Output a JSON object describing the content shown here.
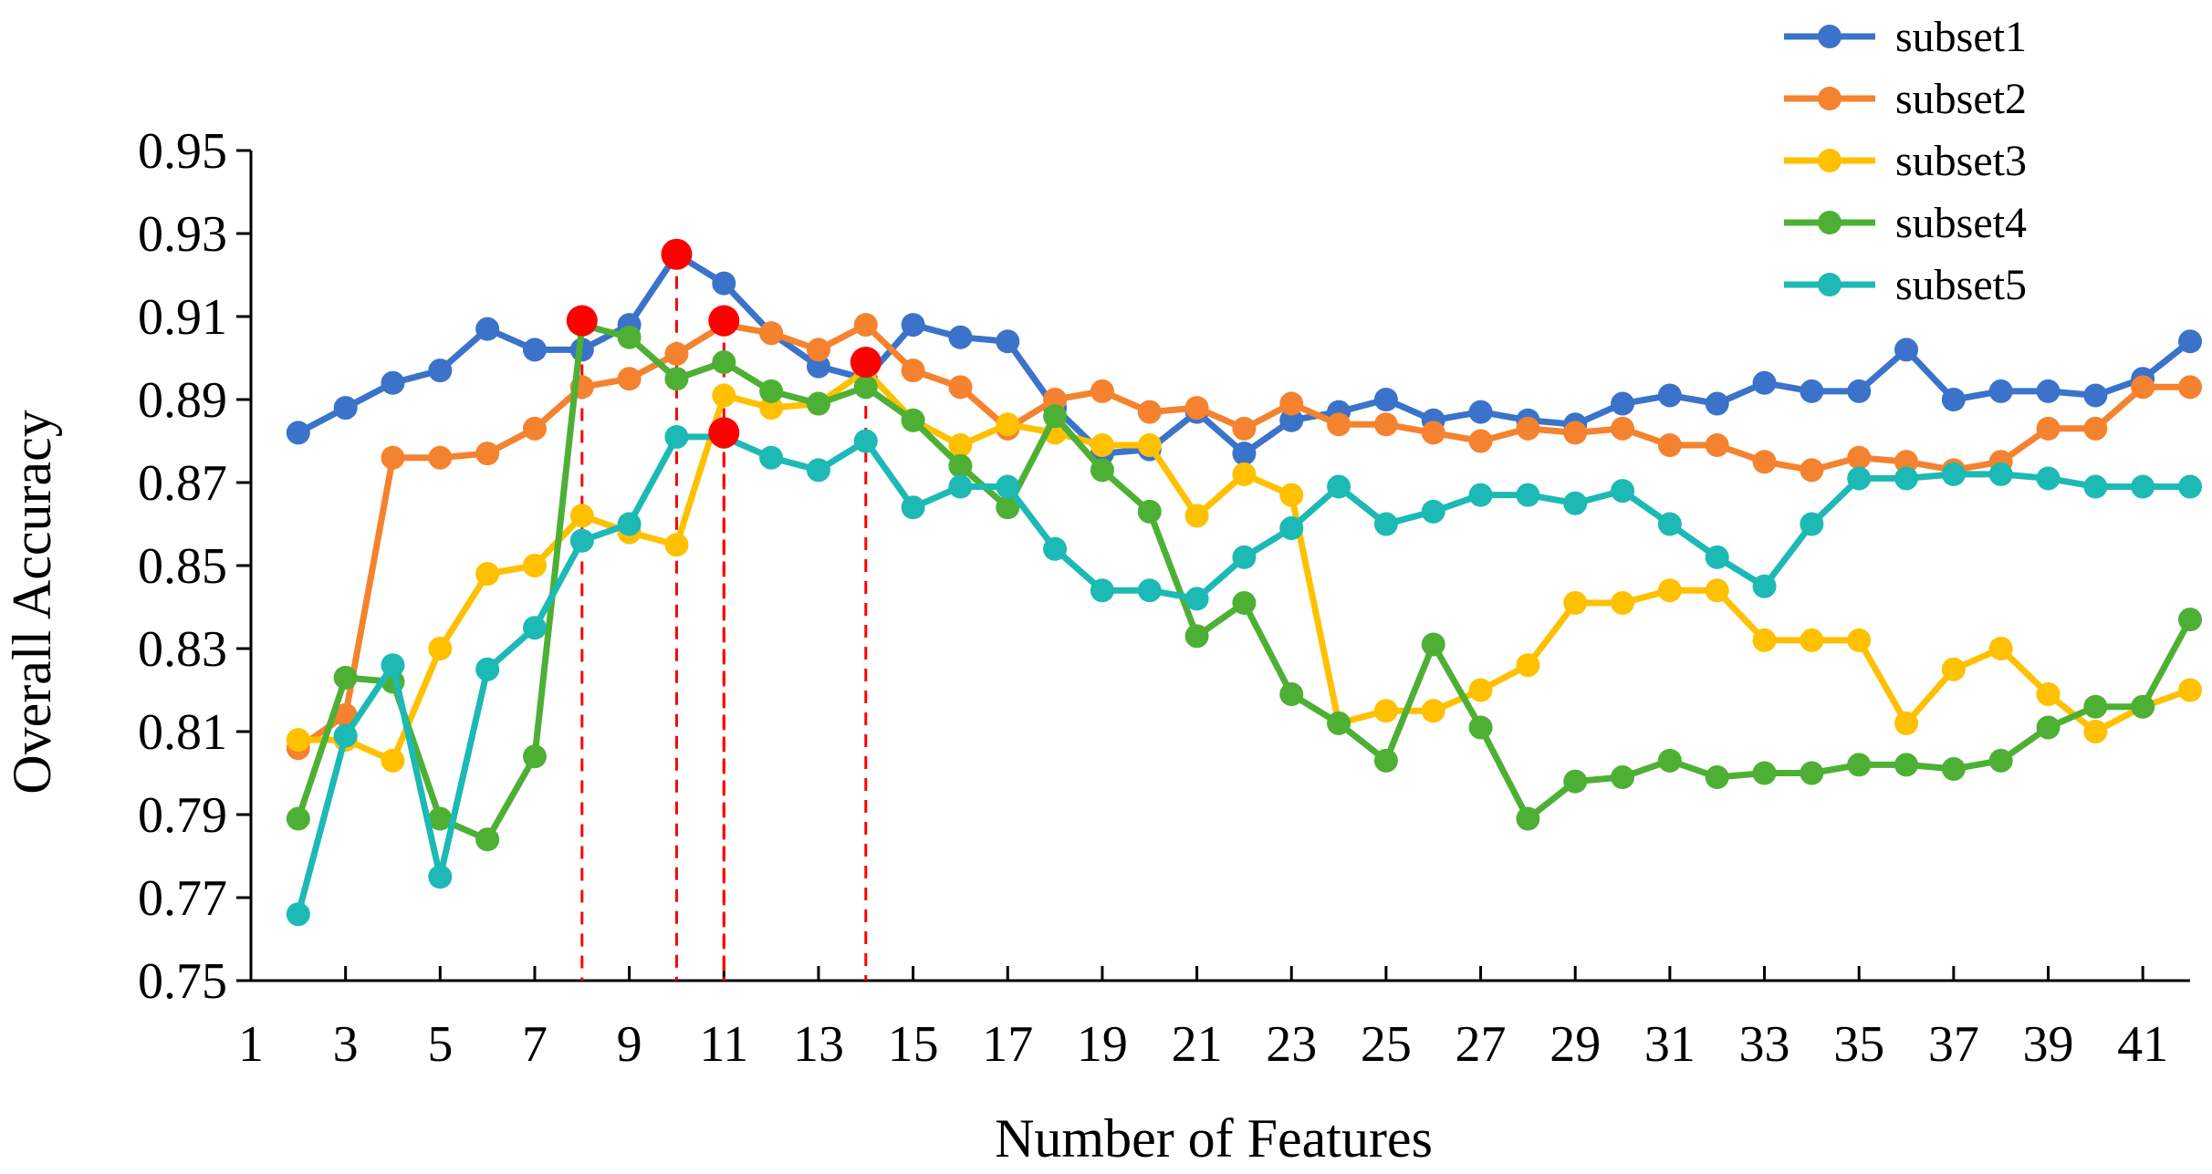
{
  "chart_data": {
    "type": "line",
    "title": "",
    "xlabel": "Number of Features",
    "ylabel": "Overall Accuracy",
    "xlim": [
      1,
      42
    ],
    "ylim": [
      0.75,
      0.95
    ],
    "x_ticks": [
      "1",
      "3",
      "5",
      "7",
      "9",
      "11",
      "13",
      "15",
      "17",
      "19",
      "21",
      "23",
      "25",
      "27",
      "29",
      "31",
      "33",
      "35",
      "37",
      "39",
      "41"
    ],
    "y_ticks": [
      "0.75",
      "0.77",
      "0.79",
      "0.81",
      "0.83",
      "0.85",
      "0.87",
      "0.89",
      "0.91",
      "0.93",
      "0.95"
    ],
    "legend_position": "top-right",
    "x": [
      2,
      3,
      4,
      5,
      6,
      7,
      8,
      9,
      10,
      11,
      12,
      13,
      14,
      15,
      16,
      17,
      18,
      19,
      20,
      21,
      22,
      23,
      24,
      25,
      26,
      27,
      28,
      29,
      30,
      31,
      32,
      33,
      34,
      35,
      36,
      37,
      38,
      39,
      40,
      41,
      42
    ],
    "series": [
      {
        "name": "subset1",
        "color": "#3a73c9",
        "values": [
          0.882,
          0.888,
          0.894,
          0.897,
          0.907,
          0.902,
          0.902,
          0.908,
          0.925,
          0.918,
          0.906,
          0.898,
          0.895,
          0.908,
          0.905,
          0.904,
          0.888,
          0.877,
          0.878,
          0.887,
          0.877,
          0.885,
          0.887,
          0.89,
          0.885,
          0.887,
          0.885,
          0.884,
          0.889,
          0.891,
          0.889,
          0.894,
          0.892,
          0.892,
          0.902,
          0.89,
          0.892,
          0.892,
          0.891,
          0.895,
          0.904
        ]
      },
      {
        "name": "subset2",
        "color": "#f5822f",
        "values": [
          0.806,
          0.814,
          0.876,
          0.876,
          0.877,
          0.883,
          0.893,
          0.895,
          0.901,
          0.908,
          0.906,
          0.902,
          0.908,
          0.897,
          0.893,
          0.883,
          0.89,
          0.892,
          0.887,
          0.888,
          0.883,
          0.889,
          0.884,
          0.884,
          0.882,
          0.88,
          0.883,
          0.882,
          0.883,
          0.879,
          0.879,
          0.875,
          0.873,
          0.876,
          0.875,
          0.873,
          0.875,
          0.883,
          0.883,
          0.893,
          0.893
        ]
      },
      {
        "name": "subset3",
        "color": "#ffc000",
        "values": [
          0.808,
          0.808,
          0.803,
          0.83,
          0.848,
          0.85,
          0.862,
          0.858,
          0.855,
          0.891,
          0.888,
          0.889,
          0.897,
          0.885,
          0.879,
          0.884,
          0.882,
          0.879,
          0.879,
          0.862,
          0.872,
          0.867,
          0.812,
          0.815,
          0.815,
          0.82,
          0.826,
          0.841,
          0.841,
          0.844,
          0.844,
          0.832,
          0.832,
          0.832,
          0.812,
          0.825,
          0.83,
          0.819,
          0.81,
          0.816,
          0.82
        ]
      },
      {
        "name": "subset4",
        "color": "#4db035",
        "values": [
          0.789,
          0.823,
          0.822,
          0.789,
          0.784,
          0.804,
          0.908,
          0.905,
          0.895,
          0.899,
          0.892,
          0.889,
          0.893,
          0.885,
          0.874,
          0.864,
          0.886,
          0.873,
          0.863,
          0.833,
          0.841,
          0.819,
          0.812,
          0.803,
          0.831,
          0.811,
          0.789,
          0.798,
          0.799,
          0.803,
          0.799,
          0.8,
          0.8,
          0.802,
          0.802,
          0.801,
          0.803,
          0.811,
          0.816,
          0.816,
          0.837
        ]
      },
      {
        "name": "subset5",
        "color": "#1cb9b5",
        "values": [
          0.766,
          0.809,
          0.826,
          0.775,
          0.825,
          0.835,
          0.856,
          0.86,
          0.881,
          0.881,
          0.876,
          0.873,
          0.88,
          0.864,
          0.869,
          0.869,
          0.854,
          0.844,
          0.844,
          0.842,
          0.852,
          0.859,
          0.869,
          0.86,
          0.863,
          0.867,
          0.867,
          0.865,
          0.868,
          0.86,
          0.852,
          0.845,
          0.86,
          0.871,
          0.871,
          0.872,
          0.872,
          0.871,
          0.869,
          0.869,
          0.869
        ]
      }
    ],
    "annotations": [
      {
        "x": 8,
        "y": 0.909,
        "series": "subset4"
      },
      {
        "x": 10,
        "y": 0.925,
        "series": "subset1"
      },
      {
        "x": 11,
        "y": 0.909,
        "series": "subset2"
      },
      {
        "x": 11,
        "y": 0.882,
        "series": "subset5"
      },
      {
        "x": 14,
        "y": 0.899,
        "series": "subset3"
      }
    ],
    "annotation_color": "#ff0000"
  }
}
